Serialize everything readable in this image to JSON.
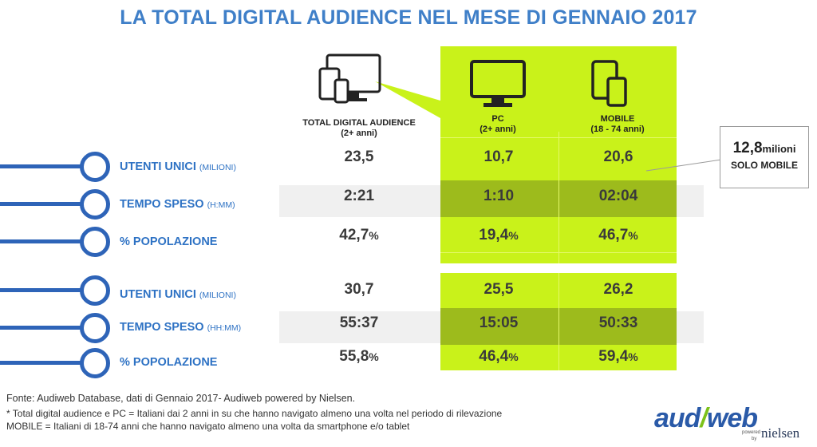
{
  "title": "LA TOTAL DIGITAL AUDIENCE NEL MESE DI GENNAIO 2017",
  "columns": {
    "total": {
      "name": "TOTAL DIGITAL AUDIENCE",
      "sub": "(2+ anni)"
    },
    "pc": {
      "name": "PC",
      "sub": "(2+ anni)"
    },
    "mobile": {
      "name": "MOBILE",
      "sub": "(18 - 74 anni)"
    }
  },
  "sections": [
    {
      "rows": [
        {
          "label": "UTENTI UNICI",
          "unit": "(MILIONI)",
          "total": "23,5",
          "pc": "10,7",
          "mobile": "20,6",
          "pct": false
        },
        {
          "label": "TEMPO SPESO",
          "unit": "(H:MM)",
          "total": "2:21",
          "pc": "1:10",
          "mobile": "02:04",
          "pct": false
        },
        {
          "label": "% POPOLAZIONE",
          "unit": "",
          "total": "42,7",
          "pc": "19,4",
          "mobile": "46,7",
          "pct": true
        }
      ]
    },
    {
      "rows": [
        {
          "label": "UTENTI UNICI",
          "unit": "(MILIONI)",
          "total": "30,7",
          "pc": "25,5",
          "mobile": "26,2",
          "pct": false
        },
        {
          "label": "TEMPO SPESO",
          "unit": "(HH:MM)",
          "total": "55:37",
          "pc": "15:05",
          "mobile": "50:33",
          "pct": false
        },
        {
          "label": "% POPOLAZIONE",
          "unit": "",
          "total": "55,8",
          "pc": "46,4",
          "mobile": "59,4",
          "pct": true
        }
      ]
    }
  ],
  "pct_symbol": "%",
  "callout": {
    "value": "12,8",
    "unit": "milioni",
    "text": "SOLO MOBILE"
  },
  "footer": {
    "source": "Fonte: Audiweb Database, dati di Gennaio 2017- Audiweb powered by Nielsen.",
    "asterisk": "*",
    "note1": "Total digital audience e PC = Italiani dai 2 anni in su che hanno navigato almeno una volta nel periodo di rilevazione",
    "note2": "MOBILE = Italiani di 18-74 anni che hanno navigato almeno una volta da smartphone e/o tablet"
  },
  "logo": {
    "brand_a": "aud",
    "brand_b": "web",
    "powered": "powered",
    "by": "by",
    "partner": "nielsen"
  },
  "colors": {
    "accent_blue": "#2e64b8",
    "title_blue": "#3f7fc8",
    "lime": "#c9f21a",
    "lime_dark": "#9dbb1c"
  },
  "icons": [
    "multi-device-icon",
    "desktop-monitor-icon",
    "mobile-devices-icon"
  ]
}
